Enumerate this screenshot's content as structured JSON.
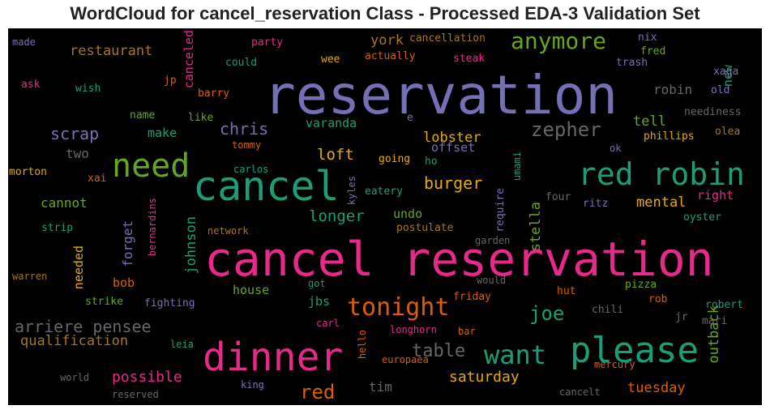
{
  "chart_data": {
    "type": "wordcloud",
    "title": "WordCloud for cancel_reservation Class - Processed EDA-3 Validation Set",
    "background": "#000000",
    "words": [
      {
        "text": "cancel reservation",
        "color": "#e7298a"
      },
      {
        "text": "reservation",
        "color": "#7570b3"
      },
      {
        "text": "cancel",
        "color": "#1b9e77"
      },
      {
        "text": "dinner",
        "color": "#e7298a"
      },
      {
        "text": "please",
        "color": "#1b9e77"
      },
      {
        "text": "need",
        "color": "#66a61e"
      },
      {
        "text": "red robin",
        "color": "#1b9e77"
      },
      {
        "text": "want",
        "color": "#1b9e77"
      },
      {
        "text": "anymore",
        "color": "#66a61e"
      },
      {
        "text": "tonight",
        "color": "#d95f02"
      },
      {
        "text": "zepher",
        "color": "#666666"
      },
      {
        "text": "table",
        "color": "#666666"
      },
      {
        "text": "arriere pensee",
        "color": "#666666"
      },
      {
        "text": "red",
        "color": "#d95f02"
      },
      {
        "text": "joe",
        "color": "#1b9e77"
      },
      {
        "text": "chris",
        "color": "#7570b3"
      },
      {
        "text": "scrap",
        "color": "#7570b3"
      },
      {
        "text": "burger",
        "color": "#e6ab02"
      },
      {
        "text": "longer",
        "color": "#1b9e77"
      },
      {
        "text": "loft",
        "color": "#e6ab02"
      },
      {
        "text": "saturday",
        "color": "#e6ab02"
      },
      {
        "text": "possible",
        "color": "#e7298a"
      },
      {
        "text": "qualification",
        "color": "#a6761d"
      },
      {
        "text": "restaurant",
        "color": "#a6761d"
      },
      {
        "text": "lobster",
        "color": "#e6ab02"
      },
      {
        "text": "tuesday",
        "color": "#d95f02"
      },
      {
        "text": "johnson",
        "color": "#1b9e77"
      },
      {
        "text": "york",
        "color": "#a6761d"
      },
      {
        "text": "tell",
        "color": "#66a61e"
      },
      {
        "text": "mental",
        "color": "#e6ab02"
      },
      {
        "text": "stella",
        "color": "#66a61e"
      },
      {
        "text": "outback",
        "color": "#66a61e"
      },
      {
        "text": "make",
        "color": "#1b9e77"
      },
      {
        "text": "two",
        "color": "#666666"
      },
      {
        "text": "cannot",
        "color": "#66a61e"
      },
      {
        "text": "tim",
        "color": "#666666"
      },
      {
        "text": "house",
        "color": "#66a61e"
      },
      {
        "text": "jbs",
        "color": "#1b9e77"
      },
      {
        "text": "undo",
        "color": "#66a61e"
      },
      {
        "text": "robin",
        "color": "#666666"
      },
      {
        "text": "varanda",
        "color": "#1b9e77"
      },
      {
        "text": "offset",
        "color": "#7570b3"
      },
      {
        "text": "right",
        "color": "#e7298a"
      },
      {
        "text": "forget",
        "color": "#7570b3"
      },
      {
        "text": "needed",
        "color": "#e6ab02"
      },
      {
        "text": "bob",
        "color": "#d95f02"
      },
      {
        "text": "new",
        "color": "#1b9e77"
      },
      {
        "text": "canceled",
        "color": "#e7298a"
      },
      {
        "text": "cancellation",
        "color": "#a6761d"
      },
      {
        "text": "party",
        "color": "#e7298a"
      },
      {
        "text": "made",
        "color": "#7570b3"
      },
      {
        "text": "could",
        "color": "#1b9e77"
      },
      {
        "text": "wee",
        "color": "#e6ab02"
      },
      {
        "text": "actually",
        "color": "#d95f02"
      },
      {
        "text": "steak",
        "color": "#e7298a"
      },
      {
        "text": "nix",
        "color": "#7570b3"
      },
      {
        "text": "fred",
        "color": "#66a61e"
      },
      {
        "text": "trash",
        "color": "#7570b3"
      },
      {
        "text": "xaga",
        "color": "#7570b3"
      },
      {
        "text": "old",
        "color": "#7570b3"
      },
      {
        "text": "ask",
        "color": "#e7298a"
      },
      {
        "text": "wish",
        "color": "#1b9e77"
      },
      {
        "text": "jp",
        "color": "#d95f02"
      },
      {
        "text": "barry",
        "color": "#d95f02"
      },
      {
        "text": "neediness",
        "color": "#666666"
      },
      {
        "text": "name",
        "color": "#66a61e"
      },
      {
        "text": "like",
        "color": "#66a61e"
      },
      {
        "text": "e",
        "color": "#7570b3"
      },
      {
        "text": "olea",
        "color": "#a6761d"
      },
      {
        "text": "phillips",
        "color": "#e6ab02"
      },
      {
        "text": "tommy",
        "color": "#d95f02"
      },
      {
        "text": "morton",
        "color": "#e6ab02"
      },
      {
        "text": "xai",
        "color": "#d95f02"
      },
      {
        "text": "carlos",
        "color": "#1b9e77"
      },
      {
        "text": "kyles",
        "color": "#7570b3"
      },
      {
        "text": "going",
        "color": "#e6ab02"
      },
      {
        "text": "ho",
        "color": "#1b9e77"
      },
      {
        "text": "umami",
        "color": "#1b9e77"
      },
      {
        "text": "ok",
        "color": "#7570b3"
      },
      {
        "text": "eatery",
        "color": "#1b9e77"
      },
      {
        "text": "require",
        "color": "#7570b3"
      },
      {
        "text": "four",
        "color": "#666666"
      },
      {
        "text": "ritz",
        "color": "#7570b3"
      },
      {
        "text": "strip",
        "color": "#1b9e77"
      },
      {
        "text": "bernardins",
        "color": "#e7298a"
      },
      {
        "text": "network",
        "color": "#a6761d"
      },
      {
        "text": "postulate",
        "color": "#a6761d"
      },
      {
        "text": "garden",
        "color": "#666666"
      },
      {
        "text": "oyster",
        "color": "#1b9e77"
      },
      {
        "text": "warren",
        "color": "#a6761d"
      },
      {
        "text": "got",
        "color": "#1b9e77"
      },
      {
        "text": "would",
        "color": "#666666"
      },
      {
        "text": "pizza",
        "color": "#66a61e"
      },
      {
        "text": "strike",
        "color": "#66a61e"
      },
      {
        "text": "fighting",
        "color": "#7570b3"
      },
      {
        "text": "friday",
        "color": "#d95f02"
      },
      {
        "text": "hut",
        "color": "#d95f02"
      },
      {
        "text": "rob",
        "color": "#d95f02"
      },
      {
        "text": "robert",
        "color": "#1b9e77"
      },
      {
        "text": "chili",
        "color": "#666666"
      },
      {
        "text": "jr",
        "color": "#666666"
      },
      {
        "text": "mari",
        "color": "#666666"
      },
      {
        "text": "carl",
        "color": "#e7298a"
      },
      {
        "text": "longhorn",
        "color": "#e7298a"
      },
      {
        "text": "bar",
        "color": "#d95f02"
      },
      {
        "text": "leia",
        "color": "#1b9e77"
      },
      {
        "text": "hello",
        "color": "#d95f02"
      },
      {
        "text": "europaea",
        "color": "#d95f02"
      },
      {
        "text": "mercury",
        "color": "#d95f02"
      },
      {
        "text": "world",
        "color": "#666666"
      },
      {
        "text": "king",
        "color": "#7570b3"
      },
      {
        "text": "reserved",
        "color": "#666666"
      },
      {
        "text": "cancelt",
        "color": "#666666"
      }
    ]
  }
}
